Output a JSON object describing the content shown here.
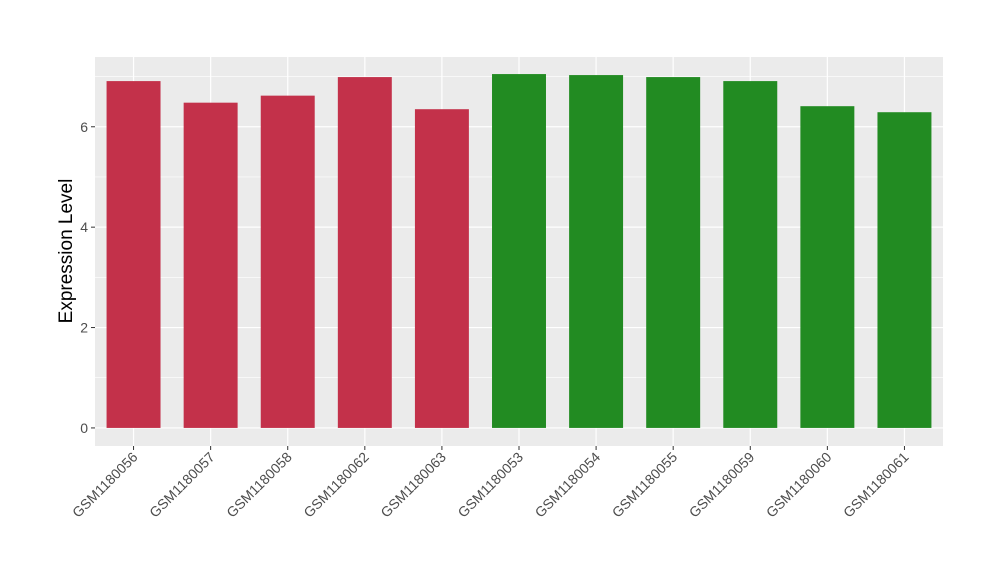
{
  "chart_data": {
    "type": "bar",
    "title": "",
    "xlabel": "",
    "ylabel": "Expression Level",
    "ylim": [
      -0.36,
      7.39
    ],
    "yticks": [
      0,
      2,
      4,
      6
    ],
    "grid": true,
    "legend": "none",
    "background": "#EBEBEB",
    "categories": [
      "GSM1180056",
      "GSM1180057",
      "GSM1180058",
      "GSM1180062",
      "GSM1180063",
      "GSM1180053",
      "GSM1180054",
      "GSM1180055",
      "GSM1180059",
      "GSM1180060",
      "GSM1180061"
    ],
    "values": [
      6.91,
      6.48,
      6.62,
      6.99,
      6.35,
      7.05,
      7.03,
      6.99,
      6.91,
      6.41,
      6.29
    ],
    "bar_colors": [
      "#C3314A",
      "#C3314A",
      "#C3314A",
      "#C3314A",
      "#C3314A",
      "#228B22",
      "#228B22",
      "#228B22",
      "#228B22",
      "#228B22",
      "#228B22"
    ]
  }
}
